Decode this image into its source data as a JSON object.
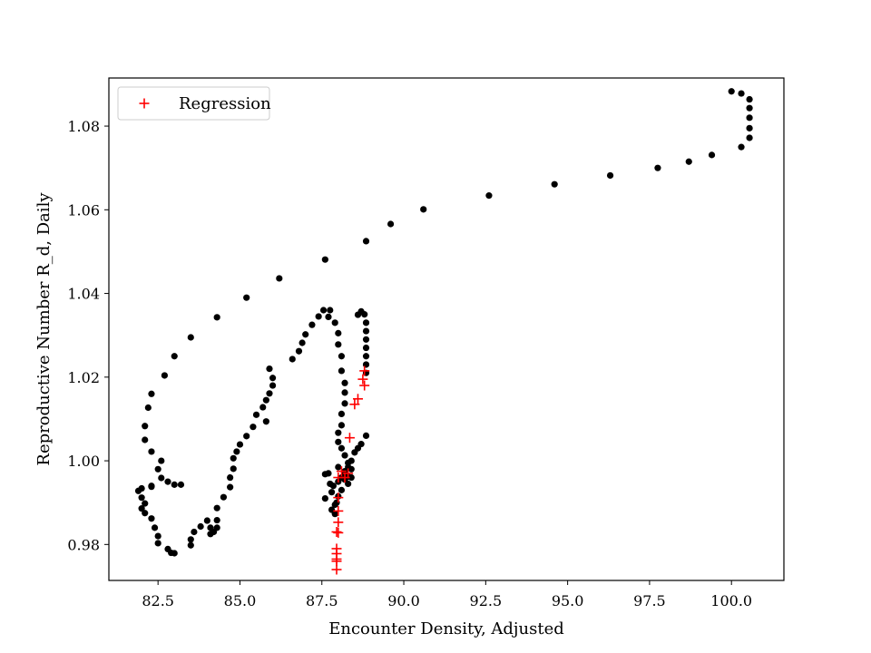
{
  "chart_data": {
    "type": "scatter",
    "xlabel": "Encounter Density, Adjusted",
    "ylabel": "Reproductive Number R_d, Daily",
    "xlim": [
      81.0,
      101.6
    ],
    "ylim": [
      0.9714,
      1.0915
    ],
    "xticks": [
      82.5,
      85.0,
      87.5,
      90.0,
      92.5,
      95.0,
      97.5,
      100.0
    ],
    "xtick_labels": [
      "82.5",
      "85.0",
      "87.5",
      "90.0",
      "92.5",
      "95.0",
      "97.5",
      "100.0"
    ],
    "yticks": [
      0.98,
      1.0,
      1.02,
      1.04,
      1.06,
      1.08
    ],
    "ytick_labels": [
      "0.98",
      "1.00",
      "1.02",
      "1.04",
      "1.06",
      "1.08"
    ],
    "grid": false,
    "legend_position": "top-left",
    "series": [
      {
        "marker": "dot",
        "color": "#000000",
        "points": [
          [
            100.0,
            1.0883
          ],
          [
            100.3,
            1.0878
          ],
          [
            100.55,
            1.0864
          ],
          [
            100.55,
            1.0843
          ],
          [
            100.55,
            1.082
          ],
          [
            100.55,
            1.0795
          ],
          [
            100.55,
            1.0772
          ],
          [
            100.3,
            1.075
          ],
          [
            99.4,
            1.0731
          ],
          [
            98.7,
            1.0715
          ],
          [
            97.75,
            1.07
          ],
          [
            96.3,
            1.0682
          ],
          [
            94.6,
            1.0661
          ],
          [
            92.6,
            1.0634
          ],
          [
            90.6,
            1.0601
          ],
          [
            89.6,
            1.0566
          ],
          [
            88.85,
            1.0525
          ],
          [
            87.6,
            1.0481
          ],
          [
            86.2,
            1.0436
          ],
          [
            85.2,
            1.039
          ],
          [
            84.3,
            1.0343
          ],
          [
            83.5,
            1.0295
          ],
          [
            83.0,
            1.025
          ],
          [
            82.7,
            1.0204
          ],
          [
            82.3,
            1.016
          ],
          [
            82.2,
            1.0127
          ],
          [
            82.1,
            1.0083
          ],
          [
            82.1,
            1.005
          ],
          [
            82.3,
            1.0022
          ],
          [
            82.6,
            1.0
          ],
          [
            82.5,
            0.998
          ],
          [
            82.6,
            0.9959
          ],
          [
            82.8,
            0.995
          ],
          [
            83.0,
            0.9943
          ],
          [
            83.2,
            0.9943
          ],
          [
            82.3,
            0.994
          ],
          [
            82.3,
            0.9938
          ],
          [
            81.9,
            0.9928
          ],
          [
            82.0,
            0.9934
          ],
          [
            82.0,
            0.9912
          ],
          [
            82.1,
            0.9898
          ],
          [
            82.0,
            0.9886
          ],
          [
            82.1,
            0.9875
          ],
          [
            82.3,
            0.9862
          ],
          [
            82.4,
            0.984
          ],
          [
            82.5,
            0.982
          ],
          [
            82.5,
            0.9803
          ],
          [
            82.8,
            0.9789
          ],
          [
            82.9,
            0.978
          ],
          [
            83.0,
            0.9779
          ],
          [
            83.5,
            0.9798
          ],
          [
            83.5,
            0.9812
          ],
          [
            83.6,
            0.983
          ],
          [
            83.8,
            0.9843
          ],
          [
            84.0,
            0.9857
          ],
          [
            84.1,
            0.984
          ],
          [
            84.1,
            0.9825
          ],
          [
            84.2,
            0.983
          ],
          [
            84.3,
            0.984
          ],
          [
            84.3,
            0.9858
          ],
          [
            84.3,
            0.9887
          ],
          [
            84.5,
            0.9913
          ],
          [
            84.7,
            0.9937
          ],
          [
            84.7,
            0.996
          ],
          [
            84.8,
            0.9981
          ],
          [
            84.8,
            1.0006
          ],
          [
            84.9,
            1.0022
          ],
          [
            85.0,
            1.0039
          ],
          [
            85.2,
            1.0059
          ],
          [
            85.4,
            1.0081
          ],
          [
            85.5,
            1.011
          ],
          [
            85.7,
            1.0128
          ],
          [
            85.8,
            1.0094
          ],
          [
            85.8,
            1.0145
          ],
          [
            85.9,
            1.0161
          ],
          [
            86.0,
            1.018
          ],
          [
            86.0,
            1.0198
          ],
          [
            85.9,
            1.022
          ],
          [
            86.6,
            1.0243
          ],
          [
            86.8,
            1.0262
          ],
          [
            86.9,
            1.0282
          ],
          [
            87.0,
            1.0302
          ],
          [
            87.2,
            1.0325
          ],
          [
            87.4,
            1.0345
          ],
          [
            87.55,
            1.036
          ],
          [
            87.75,
            1.036
          ],
          [
            87.7,
            1.0344
          ],
          [
            87.9,
            1.033
          ],
          [
            88.0,
            1.0305
          ],
          [
            88.0,
            1.0278
          ],
          [
            88.1,
            1.025
          ],
          [
            88.1,
            1.0215
          ],
          [
            88.2,
            1.0186
          ],
          [
            88.2,
            1.0163
          ],
          [
            88.2,
            1.0137
          ],
          [
            88.1,
            1.0112
          ],
          [
            88.1,
            1.0085
          ],
          [
            88.0,
            1.0067
          ],
          [
            88.0,
            1.0045
          ],
          [
            88.1,
            1.003
          ],
          [
            88.2,
            1.0013
          ],
          [
            88.3,
            0.9995
          ],
          [
            88.4,
            0.998
          ],
          [
            88.4,
            0.996
          ],
          [
            88.3,
            0.9945
          ],
          [
            88.6,
            1.0349
          ],
          [
            88.7,
            1.0357
          ],
          [
            88.8,
            1.035
          ],
          [
            88.85,
            1.033
          ],
          [
            88.85,
            1.031
          ],
          [
            88.85,
            1.029
          ],
          [
            88.85,
            1.027
          ],
          [
            88.85,
            1.025
          ],
          [
            88.85,
            1.023
          ],
          [
            88.85,
            1.021
          ],
          [
            88.85,
            1.006
          ],
          [
            88.7,
            1.004
          ],
          [
            88.6,
            1.003
          ],
          [
            88.5,
            1.002
          ],
          [
            88.4,
            1.0
          ],
          [
            88.3,
            0.9985
          ],
          [
            88.2,
            0.9968
          ],
          [
            87.7,
            0.997
          ],
          [
            87.6,
            0.9968
          ],
          [
            87.75,
            0.9945
          ],
          [
            87.8,
            0.9925
          ],
          [
            87.6,
            0.991
          ],
          [
            87.9,
            0.9895
          ],
          [
            87.8,
            0.9883
          ],
          [
            87.9,
            0.9873
          ],
          [
            88.0,
            0.995
          ],
          [
            88.1,
            0.996
          ],
          [
            88.3,
            0.9962
          ],
          [
            88.2,
            0.9975
          ],
          [
            88.0,
            0.9985
          ],
          [
            87.95,
            0.99
          ],
          [
            88.1,
            0.993
          ],
          [
            88.2,
            0.9955
          ],
          [
            87.85,
            0.994
          ],
          [
            88.0,
            0.9915
          ]
        ]
      },
      {
        "name": "Regression",
        "marker": "plus",
        "color": "#ff0000",
        "points": [
          [
            88.8,
            1.0215
          ],
          [
            88.75,
            1.0195
          ],
          [
            88.8,
            1.018
          ],
          [
            88.6,
            1.0148
          ],
          [
            88.5,
            1.0135
          ],
          [
            88.35,
            1.0055
          ],
          [
            88.3,
            0.997
          ],
          [
            88.2,
            0.996
          ],
          [
            88.1,
            0.9975
          ],
          [
            88.0,
            0.996
          ],
          [
            88.0,
            0.9912
          ],
          [
            88.0,
            0.988
          ],
          [
            88.0,
            0.9853
          ],
          [
            87.95,
            0.983
          ],
          [
            88.0,
            0.9828
          ],
          [
            87.95,
            0.979
          ],
          [
            87.95,
            0.9778
          ],
          [
            87.95,
            0.9765
          ],
          [
            87.95,
            0.976
          ],
          [
            87.95,
            0.974
          ]
        ]
      }
    ]
  }
}
